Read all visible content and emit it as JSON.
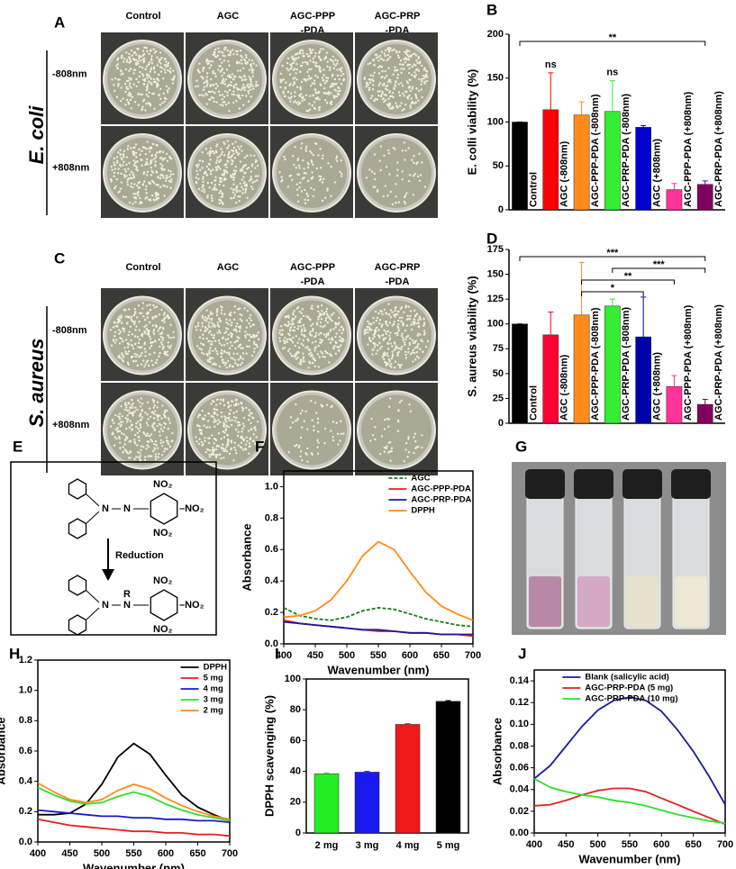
{
  "chart_data": [
    {
      "type": "bar",
      "panel": "B",
      "ylabel": "E. colli viability (%)",
      "categories": [
        "Control",
        "AGC (-808nm)",
        "AGC-PPP-PDA (-808nm)",
        "AGC-PRP-PDA (-808nm)",
        "AGC (+808nm)",
        "AGC-PPP-PDA (+808nm)",
        "AGC-PRP-PDA (+808nm)"
      ],
      "values": [
        100,
        114,
        108,
        112,
        94,
        23,
        29
      ],
      "errors": [
        0,
        42,
        15,
        35,
        2,
        7,
        4
      ],
      "colors": [
        "#000000",
        "#ff0000",
        "#ff8c1a",
        "#33ee33",
        "#0000cc",
        "#ff3399",
        "#800060"
      ],
      "ylim": [
        0,
        200
      ],
      "yticks": [
        0,
        50,
        100,
        150,
        200
      ],
      "annotations": [
        {
          "text": "ns",
          "category": "AGC (-808nm)"
        },
        {
          "text": "ns",
          "category": "AGC-PRP-PDA (-808nm)"
        }
      ],
      "brackets": [
        {
          "text": "**",
          "from": "Control",
          "to": "AGC-PRP-PDA (+808nm)"
        }
      ]
    },
    {
      "type": "bar",
      "panel": "D",
      "ylabel": "S. aureus viability (%)",
      "categories": [
        "Control",
        "AGC (-808nm)",
        "AGC-PPP-PDA (-808nm)",
        "AGC-PRP-PDA (-808nm)",
        "AGC (+808nm)",
        "AGC-PPP-PDA (+808nm)",
        "AGC-PRP-PDA (+808nm)"
      ],
      "values": [
        100,
        89,
        109,
        118,
        87,
        37,
        19
      ],
      "errors": [
        0,
        23,
        53,
        7,
        40,
        11,
        5
      ],
      "colors": [
        "#000000",
        "#ff0033",
        "#ff8c1a",
        "#33ee33",
        "#0000aa",
        "#ff3399",
        "#800060"
      ],
      "ylim": [
        0,
        175
      ],
      "yticks": [
        0,
        25,
        50,
        75,
        100,
        125,
        150,
        175
      ],
      "annotations": [],
      "brackets": [
        {
          "text": "***",
          "from": "Control",
          "to": "AGC-PRP-PDA (+808nm)"
        },
        {
          "text": "***",
          "from": "AGC-PRP-PDA (-808nm)",
          "to": "AGC-PRP-PDA (+808nm)"
        },
        {
          "text": "**",
          "from": "AGC-PPP-PDA (-808nm)",
          "to": "AGC-PPP-PDA (+808nm)"
        },
        {
          "text": "*",
          "from": "AGC-PPP-PDA (-808nm)",
          "to": "AGC (+808nm)"
        }
      ]
    },
    {
      "type": "line",
      "panel": "F",
      "xlabel": "Wavenumber (nm)",
      "ylabel": "Absorbance",
      "legend": "upper right",
      "x": [
        400,
        425,
        450,
        475,
        500,
        525,
        550,
        575,
        600,
        625,
        650,
        675,
        700
      ],
      "xlim": [
        400,
        700
      ],
      "xticks": [
        400,
        450,
        500,
        550,
        600,
        650,
        700
      ],
      "ylim": [
        0,
        1.1
      ],
      "yticks": [
        {
          "value": 0,
          "label": "0.0"
        },
        0.2,
        0.4,
        0.6,
        0.8,
        {
          "value": 1,
          "label": "1.0"
        }
      ],
      "series": [
        {
          "name": "AGC",
          "color": "#1a7a1a",
          "dashed": true,
          "values": [
            0.23,
            0.18,
            0.16,
            0.15,
            0.17,
            0.21,
            0.23,
            0.22,
            0.19,
            0.16,
            0.14,
            0.12,
            0.11
          ]
        },
        {
          "name": "AGC-PPP-PDA",
          "color": "#e02020",
          "values": [
            0.15,
            0.13,
            0.12,
            0.11,
            0.1,
            0.09,
            0.08,
            0.08,
            0.07,
            0.07,
            0.06,
            0.06,
            0.05
          ]
        },
        {
          "name": "AGC-PRP-PDA",
          "color": "#1a1a9a",
          "values": [
            0.14,
            0.13,
            0.12,
            0.11,
            0.1,
            0.09,
            0.09,
            0.08,
            0.07,
            0.07,
            0.06,
            0.06,
            0.06
          ]
        },
        {
          "name": "DPPH",
          "color": "#ff8c1a",
          "values": [
            0.17,
            0.18,
            0.21,
            0.28,
            0.4,
            0.56,
            0.65,
            0.6,
            0.46,
            0.33,
            0.24,
            0.19,
            0.15
          ]
        }
      ]
    },
    {
      "type": "line",
      "panel": "H",
      "xlabel": "Wavenumber (nm)",
      "ylabel": "Absorbance",
      "legend": "upper right",
      "x": [
        400,
        425,
        450,
        475,
        500,
        525,
        550,
        575,
        600,
        625,
        650,
        675,
        700
      ],
      "xlim": [
        400,
        700
      ],
      "xticks": [
        400,
        450,
        500,
        550,
        600,
        650,
        700
      ],
      "ylim": [
        0,
        1.2
      ],
      "yticks": [
        {
          "value": 0,
          "label": "0.0"
        },
        0.2,
        0.4,
        0.6,
        0.8,
        {
          "value": 1,
          "label": "1.0"
        },
        1.2
      ],
      "series": [
        {
          "name": "DPPH",
          "color": "#000000",
          "values": [
            0.18,
            0.18,
            0.19,
            0.25,
            0.38,
            0.56,
            0.65,
            0.58,
            0.44,
            0.31,
            0.23,
            0.18,
            0.14
          ]
        },
        {
          "name": "5 mg",
          "color": "#e02020",
          "values": [
            0.15,
            0.13,
            0.11,
            0.1,
            0.09,
            0.08,
            0.07,
            0.07,
            0.06,
            0.06,
            0.05,
            0.05,
            0.04
          ]
        },
        {
          "name": "4 mg",
          "color": "#1a1acc",
          "values": [
            0.21,
            0.2,
            0.19,
            0.18,
            0.17,
            0.17,
            0.16,
            0.16,
            0.15,
            0.15,
            0.14,
            0.14,
            0.13
          ]
        },
        {
          "name": "3 mg",
          "color": "#33dd33",
          "values": [
            0.36,
            0.31,
            0.27,
            0.25,
            0.26,
            0.3,
            0.33,
            0.3,
            0.25,
            0.21,
            0.18,
            0.16,
            0.14
          ]
        },
        {
          "name": "2 mg",
          "color": "#ff8c1a",
          "values": [
            0.39,
            0.33,
            0.28,
            0.26,
            0.28,
            0.34,
            0.38,
            0.35,
            0.29,
            0.24,
            0.2,
            0.17,
            0.15
          ]
        }
      ]
    },
    {
      "type": "bar",
      "panel": "I",
      "ylabel": "DPPH scavenging (%)",
      "categories": [
        "2 mg",
        "3 mg",
        "4 mg",
        "5 mg"
      ],
      "values": [
        38.5,
        39.5,
        70.5,
        85.5
      ],
      "errors": [
        0.5,
        0.5,
        0.5,
        0.5
      ],
      "colors": [
        "#22ee22",
        "#1a1aee",
        "#ee1a1a",
        "#000000"
      ],
      "ylim": [
        0,
        100
      ],
      "yticks": [
        0,
        20,
        40,
        60,
        80,
        100
      ],
      "annotations": [],
      "brackets": []
    },
    {
      "type": "line",
      "panel": "J",
      "xlabel": "Wavenumber (nm)",
      "ylabel": "Absorbance",
      "legend": "upper center",
      "x": [
        400,
        425,
        450,
        475,
        500,
        525,
        550,
        575,
        600,
        625,
        650,
        675,
        700
      ],
      "xlim": [
        400,
        700
      ],
      "xticks": [
        400,
        450,
        500,
        550,
        600,
        650,
        700
      ],
      "ylim": [
        0,
        0.15
      ],
      "yticks": [
        {
          "value": 0,
          "label": "0.00"
        },
        0.02,
        0.04,
        0.06,
        0.08,
        {
          "value": 0.1,
          "label": "0.10"
        },
        0.12,
        0.14
      ],
      "series": [
        {
          "name": "Blank (salicylic acid)",
          "color": "#1a1a99",
          "values": [
            0.05,
            0.062,
            0.08,
            0.098,
            0.113,
            0.122,
            0.125,
            0.122,
            0.112,
            0.095,
            0.075,
            0.052,
            0.026
          ]
        },
        {
          "name": "AGC-PRP-PDA (5 mg)",
          "color": "#e02020",
          "values": [
            0.025,
            0.026,
            0.03,
            0.035,
            0.039,
            0.041,
            0.041,
            0.038,
            0.032,
            0.026,
            0.02,
            0.014,
            0.008
          ]
        },
        {
          "name": "AGC-PRP-PDA (10 mg)",
          "color": "#33dd33",
          "values": [
            0.05,
            0.042,
            0.038,
            0.035,
            0.033,
            0.03,
            0.028,
            0.025,
            0.021,
            0.017,
            0.014,
            0.011,
            0.009
          ]
        }
      ]
    }
  ],
  "photo_panels": [
    {
      "panel": "A",
      "species": "E. coli",
      "columns": [
        [
          "Control"
        ],
        [
          "AGC"
        ],
        [
          "AGC-PPP",
          "-PDA"
        ],
        [
          "AGC-PRP",
          "-PDA"
        ]
      ],
      "rows": [
        "-808nm",
        "+808nm"
      ]
    },
    {
      "panel": "C",
      "species": "S. aureus",
      "columns": [
        [
          "Control"
        ],
        [
          "AGC"
        ],
        [
          "AGC-PPP",
          "-PDA"
        ],
        [
          "AGC-PRP",
          "-PDA"
        ]
      ],
      "rows": [
        "-808nm",
        "+808nm"
      ]
    },
    {
      "panel": "G"
    }
  ],
  "scheme": {
    "panel": "E",
    "arrow_label": "Reduction",
    "top": [
      "N",
      "N",
      "NO₂",
      "–NO₂",
      "NO₂"
    ],
    "bottom": [
      "N",
      "N",
      "R",
      "NO₂",
      "–NO₂",
      "NO₂"
    ]
  }
}
